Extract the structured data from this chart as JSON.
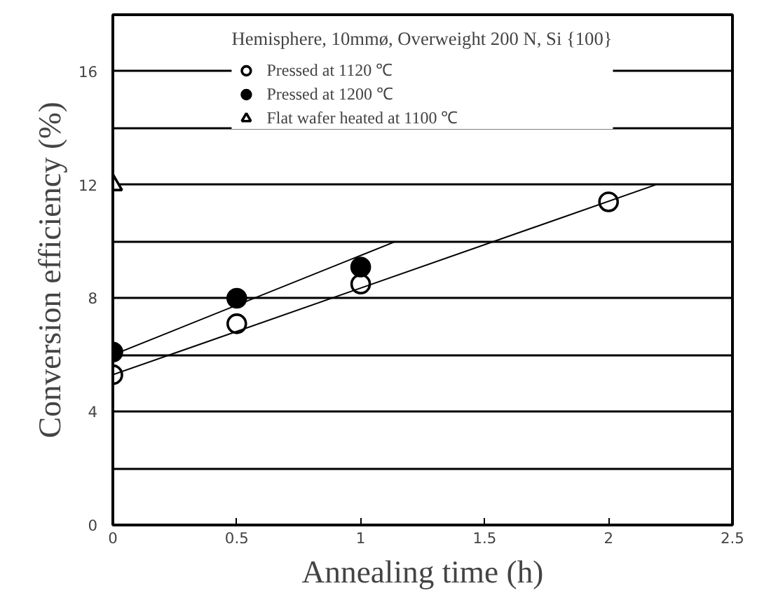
{
  "chart_data": {
    "type": "scatter",
    "xlabel": "Annealing time (h)",
    "ylabel": "Conversion efficiency (%)",
    "legend_title": "Hemisphere, 10mmø, Overweight 200 N, Si {100}",
    "xlim": [
      0,
      2.5
    ],
    "ylim": [
      0,
      18
    ],
    "xticks": [
      0,
      0.5,
      1,
      1.5,
      2,
      2.5
    ],
    "yticks": [
      0,
      {
        "value": 2,
        "label": null
      },
      4,
      {
        "value": 6,
        "label": null
      },
      8,
      {
        "value": 10,
        "label": null
      },
      12,
      {
        "value": 14,
        "label": null
      },
      16
    ],
    "grid": "y",
    "legend": "top",
    "series": [
      {
        "name": "Pressed at 1120 ℃",
        "color": "#ffffff",
        "marker": "circle",
        "x": [
          0,
          0.5,
          1,
          2
        ],
        "values": [
          5.3,
          7.1,
          8.5,
          11.4
        ]
      },
      {
        "name": "Pressed at 1200 ℃",
        "color": "#000000",
        "marker": "circle",
        "x": [
          0,
          0.5,
          1
        ],
        "values": [
          6.1,
          8.0,
          9.1
        ]
      },
      {
        "name": "Flat wafer heated at 1100 ℃",
        "color": "#ffffff",
        "marker": "triangle",
        "x": [
          0
        ],
        "values": [
          12
        ]
      },
      {
        "type": "line",
        "color": "#000000",
        "x": [
          0,
          2.19
        ],
        "values": [
          5.3,
          12
        ]
      },
      {
        "type": "line",
        "color": "#000000",
        "x": [
          0,
          1.14
        ],
        "values": [
          6.0,
          10
        ]
      }
    ]
  }
}
